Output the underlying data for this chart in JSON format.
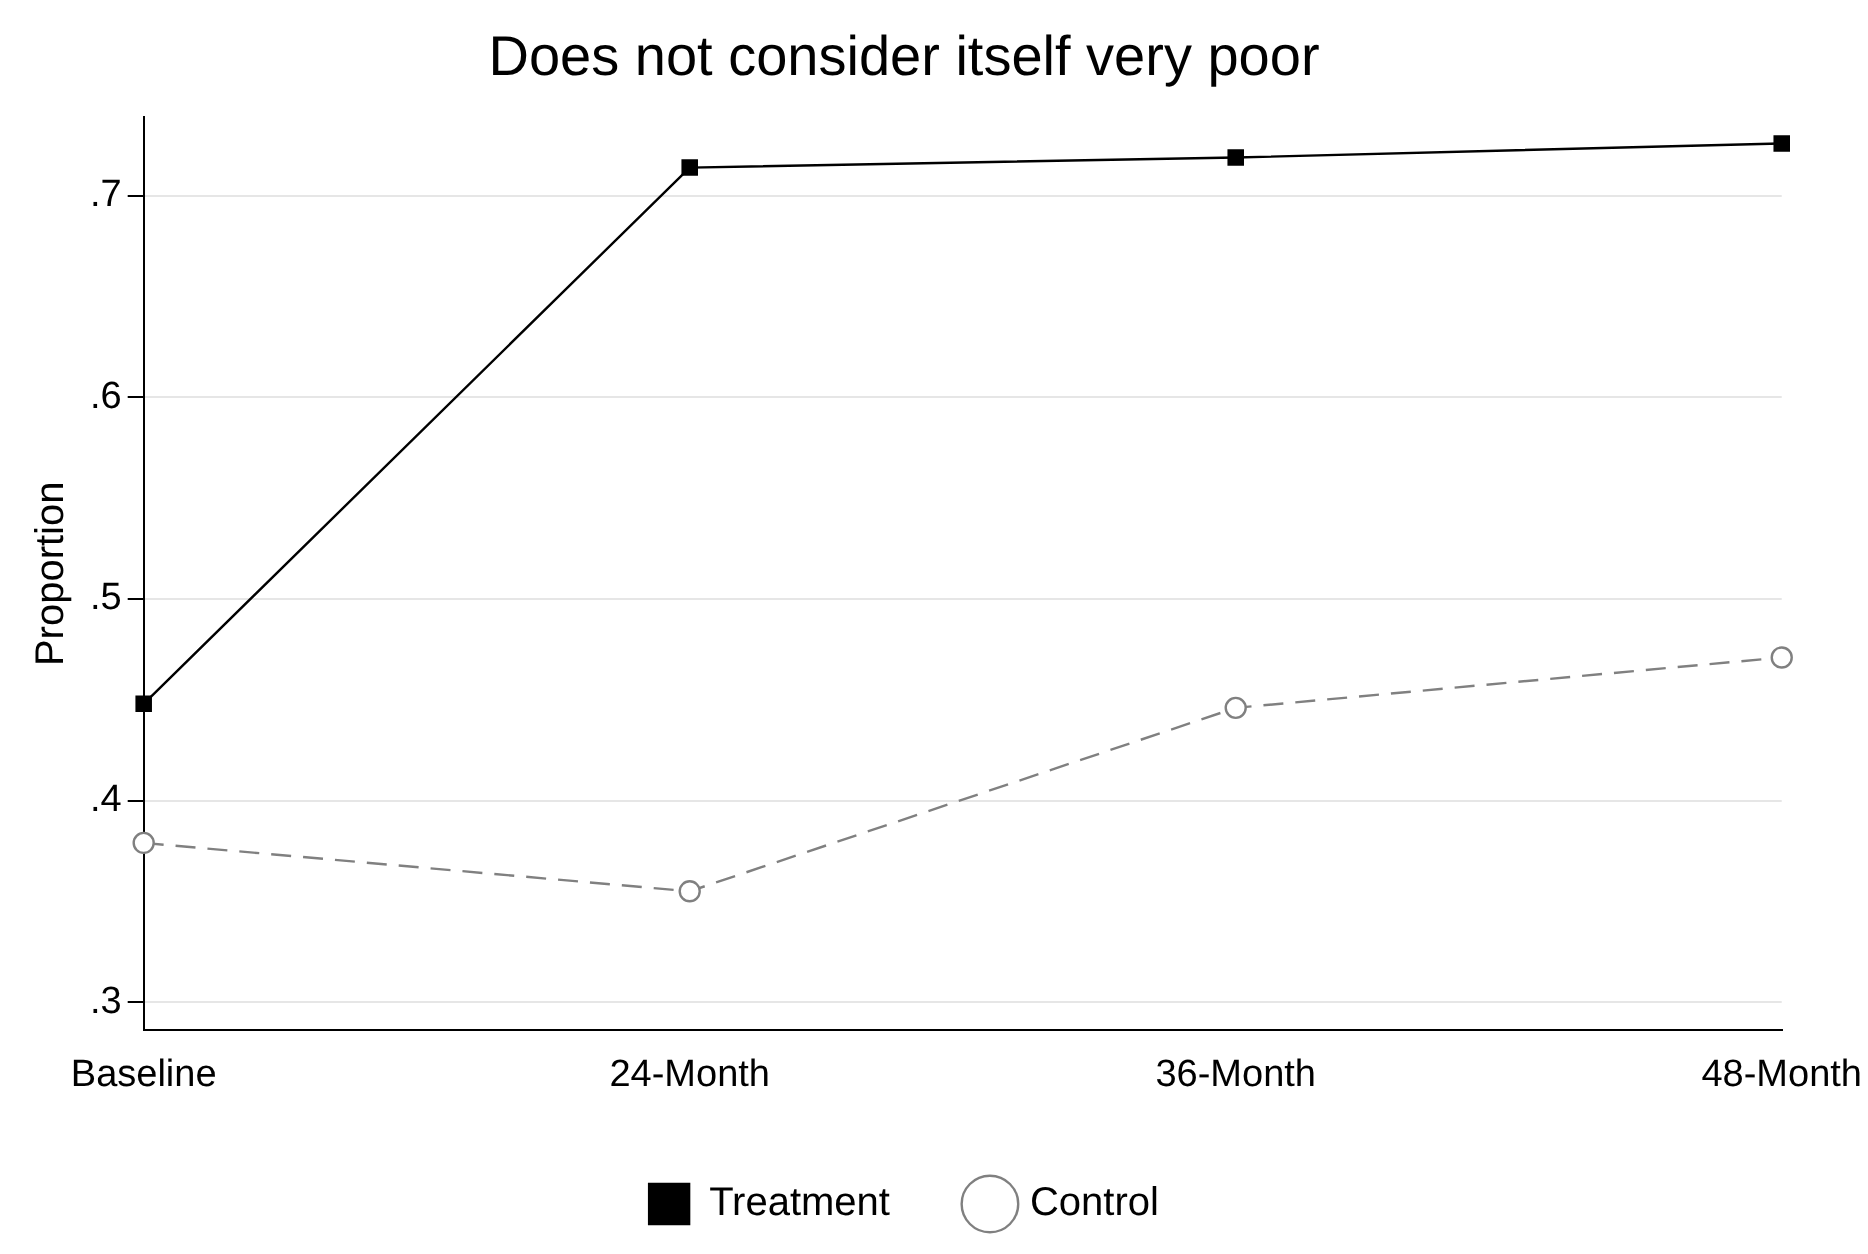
{
  "chart_data": {
    "type": "line",
    "title": "Does not consider itself very poor",
    "ylabel": "Proportion",
    "categories": [
      "Baseline",
      "24-Month",
      "36-Month",
      "48-Month"
    ],
    "series": [
      {
        "name": "Treatment",
        "color": "#000000",
        "values": [
          0.448,
          0.714,
          0.719,
          0.726
        ],
        "marker": "square",
        "line_style": "solid"
      },
      {
        "name": "Control",
        "color": "#808080",
        "values": [
          0.379,
          0.355,
          0.446,
          0.471
        ],
        "marker": "circle",
        "line_style": "dashed"
      }
    ],
    "ylim": [
      0.286,
      0.739
    ],
    "yticks": [
      {
        "value": 0.3,
        "label": ".3"
      },
      {
        "value": 0.4,
        "label": ".4"
      },
      {
        "value": 0.5,
        "label": ".5"
      },
      {
        "value": 0.6,
        "label": ".6"
      },
      {
        "value": 0.7,
        "label": ".7"
      }
    ],
    "grid": "y",
    "legend": "bottom"
  }
}
